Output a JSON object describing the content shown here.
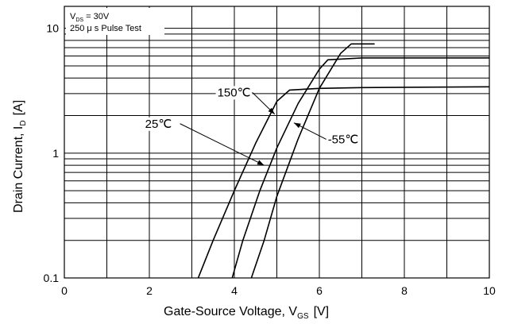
{
  "chart_data": {
    "type": "line",
    "title": "",
    "xlabel": {
      "main": "Gate-Source Voltage, V",
      "sub": "GS",
      "unit": "[V]"
    },
    "ylabel": {
      "main": "Drain Current, I",
      "sub": "D",
      "unit": "[A]"
    },
    "xlim": [
      0,
      10
    ],
    "ylim": [
      0.1,
      15
    ],
    "yscale": "log",
    "grid": true,
    "x_ticks": [
      0,
      2,
      4,
      6,
      8,
      10
    ],
    "x_tick_labels": [
      "0",
      "2",
      "4",
      "6",
      "8",
      "10"
    ],
    "y_ticks": [
      0.1,
      1,
      10
    ],
    "y_tick_labels": [
      "0.1",
      "1",
      "10"
    ],
    "conditions": {
      "line1_main": "V",
      "line1_sub": "DS",
      "line1_rest": " = 30V",
      "line2": "250 μ s Pulse Test"
    },
    "series": [
      {
        "name": "150℃",
        "label": {
          "text": "150℃",
          "x": 3.6,
          "y": 2.85,
          "arrow_to": [
            4.95,
            2.05
          ]
        },
        "x": [
          3.15,
          3.5,
          4.0,
          4.5,
          5.0,
          5.3,
          6.0,
          7.0,
          10.0
        ],
        "y": [
          0.1,
          0.2,
          0.5,
          1.2,
          2.6,
          3.2,
          3.3,
          3.35,
          3.4
        ]
      },
      {
        "name": "25℃",
        "label": {
          "text": "25℃",
          "x": 1.9,
          "y": 1.6,
          "arrow_to": [
            4.7,
            0.8
          ]
        },
        "x": [
          3.95,
          4.2,
          4.6,
          5.0,
          5.5,
          6.0,
          6.2,
          7.0,
          10.0
        ],
        "y": [
          0.1,
          0.2,
          0.5,
          1.1,
          2.5,
          4.7,
          5.6,
          5.8,
          5.8
        ]
      },
      {
        "name": "-55℃",
        "label": {
          "text": "-55℃",
          "x": 6.2,
          "y": 1.2,
          "arrow_to": [
            5.4,
            1.75
          ]
        },
        "x": [
          4.4,
          4.7,
          5.0,
          5.5,
          6.0,
          6.5,
          6.75,
          7.3
        ],
        "y": [
          0.1,
          0.2,
          0.45,
          1.3,
          3.3,
          6.3,
          7.5,
          7.5
        ]
      }
    ]
  }
}
